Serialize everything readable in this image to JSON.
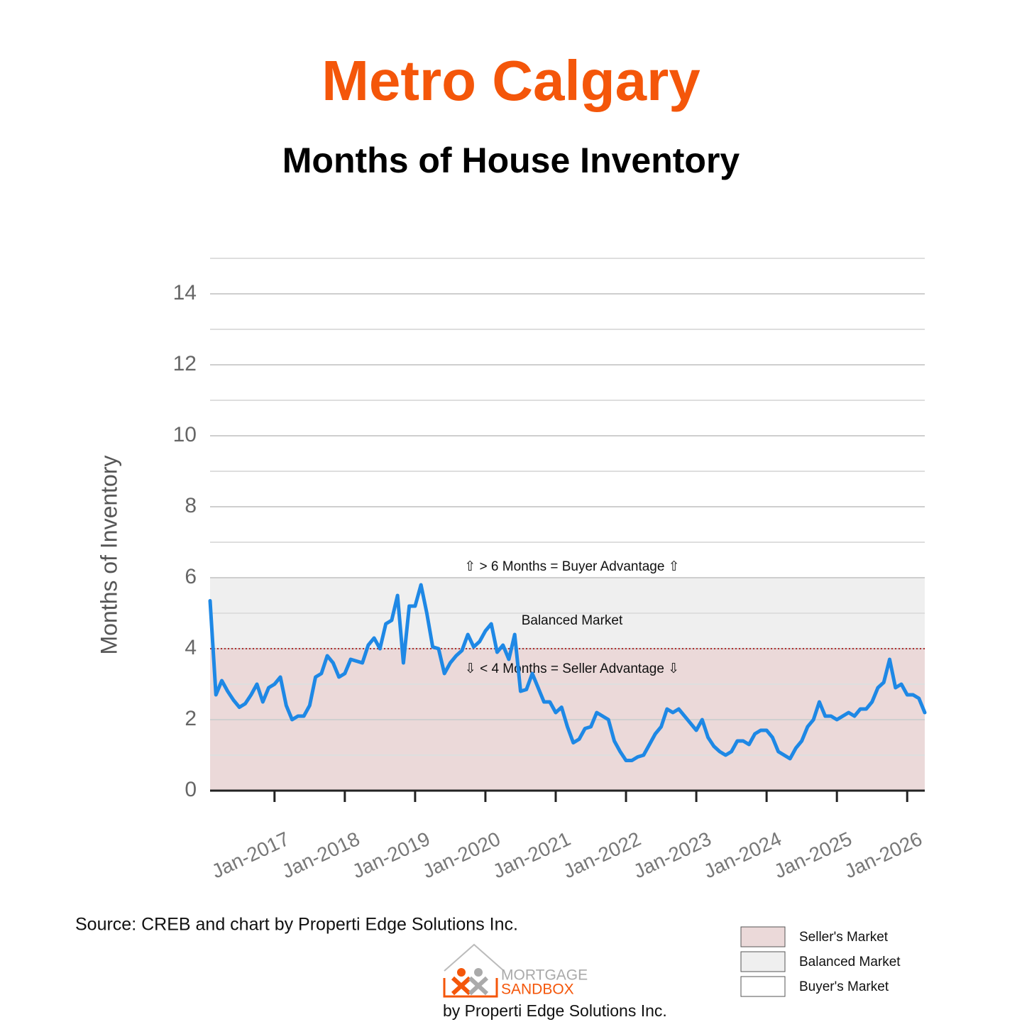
{
  "chart_data": {
    "type": "line",
    "title": "Metro Calgary",
    "subtitle": "Months of House Inventory",
    "y_label": "Months of Inventory",
    "x": [
      "2016-02",
      "2016-03",
      "2016-04",
      "2016-05",
      "2016-06",
      "2016-07",
      "2016-08",
      "2016-09",
      "2016-10",
      "2016-11",
      "2016-12",
      "2017-01",
      "2017-02",
      "2017-03",
      "2017-04",
      "2017-05",
      "2017-06",
      "2017-07",
      "2017-08",
      "2017-09",
      "2017-10",
      "2017-11",
      "2017-12",
      "2018-01",
      "2018-02",
      "2018-03",
      "2018-04",
      "2018-05",
      "2018-06",
      "2018-07",
      "2018-08",
      "2018-09",
      "2018-10",
      "2018-11",
      "2018-12",
      "2019-01",
      "2019-02",
      "2019-03",
      "2019-04",
      "2019-05",
      "2019-06",
      "2019-07",
      "2019-08",
      "2019-09",
      "2019-10",
      "2019-11",
      "2019-12",
      "2020-01",
      "2020-02",
      "2020-03",
      "2020-04",
      "2020-05",
      "2020-06",
      "2020-07",
      "2020-08",
      "2020-09",
      "2020-10",
      "2020-11",
      "2020-12",
      "2021-01",
      "2021-02",
      "2021-03",
      "2021-04",
      "2021-05",
      "2021-06",
      "2021-07",
      "2021-08",
      "2021-09",
      "2021-10",
      "2021-11",
      "2021-12",
      "2022-01",
      "2022-02",
      "2022-03",
      "2022-04",
      "2022-05",
      "2022-06",
      "2022-07",
      "2022-08",
      "2022-09",
      "2022-10",
      "2022-11",
      "2022-12",
      "2023-01",
      "2023-02",
      "2023-03",
      "2023-04",
      "2023-05",
      "2023-06",
      "2023-07",
      "2023-08",
      "2023-09",
      "2023-10",
      "2023-11",
      "2023-12",
      "2024-01",
      "2024-02",
      "2024-03",
      "2024-04",
      "2024-05",
      "2024-06",
      "2024-07",
      "2024-08",
      "2024-09",
      "2024-10",
      "2024-11",
      "2024-12",
      "2025-01",
      "2025-02",
      "2025-03",
      "2025-04",
      "2025-05",
      "2025-06",
      "2025-07",
      "2025-08",
      "2025-09",
      "2025-10",
      "2025-11",
      "2025-12",
      "2026-01",
      "2026-02",
      "2026-03",
      "2026-04"
    ],
    "series": [
      {
        "name": "Months of Inventory",
        "color": "#1e88e5",
        "values": [
          5.35,
          2.7,
          3.1,
          2.8,
          2.55,
          2.35,
          2.45,
          2.7,
          3.0,
          2.5,
          2.9,
          3.0,
          3.2,
          2.4,
          2.0,
          2.1,
          2.1,
          2.4,
          3.2,
          3.3,
          3.8,
          3.6,
          3.2,
          3.3,
          3.7,
          3.65,
          3.6,
          4.1,
          4.3,
          4.0,
          4.7,
          4.8,
          5.5,
          3.6,
          5.2,
          5.2,
          5.8,
          5.0,
          4.05,
          4.0,
          3.3,
          3.6,
          3.8,
          3.95,
          4.4,
          4.05,
          4.2,
          4.5,
          4.7,
          3.9,
          4.1,
          3.7,
          4.4,
          2.8,
          2.85,
          3.3,
          2.9,
          2.5,
          2.5,
          2.2,
          2.35,
          1.8,
          1.35,
          1.45,
          1.75,
          1.8,
          2.2,
          2.1,
          2.0,
          1.4,
          1.1,
          0.85,
          0.85,
          0.95,
          1.0,
          1.3,
          1.6,
          1.8,
          2.3,
          2.2,
          2.3,
          2.1,
          1.9,
          1.7,
          2.0,
          1.5,
          1.25,
          1.1,
          1.0,
          1.1,
          1.4,
          1.4,
          1.3,
          1.6,
          1.7,
          1.7,
          1.5,
          1.1,
          1.0,
          0.9,
          1.2,
          1.4,
          1.8,
          2.0,
          2.5,
          2.1,
          2.1,
          2.0,
          2.1,
          2.2,
          2.1,
          2.3,
          2.3,
          2.5,
          2.9,
          3.05,
          3.7,
          2.9,
          3.0,
          2.7,
          2.7,
          2.6,
          2.2
        ]
      }
    ],
    "xlim": [
      "2016-02",
      "2026-04"
    ],
    "xticks": [
      {
        "value": "2017-01",
        "label": "Jan-2017"
      },
      {
        "value": "2018-01",
        "label": "Jan-2018"
      },
      {
        "value": "2019-01",
        "label": "Jan-2019"
      },
      {
        "value": "2020-01",
        "label": "Jan-2020"
      },
      {
        "value": "2021-01",
        "label": "Jan-2021"
      },
      {
        "value": "2022-01",
        "label": "Jan-2022"
      },
      {
        "value": "2023-01",
        "label": "Jan-2023"
      },
      {
        "value": "2024-01",
        "label": "Jan-2024"
      },
      {
        "value": "2025-01",
        "label": "Jan-2025"
      },
      {
        "value": "2026-01",
        "label": "Jan-2026"
      }
    ],
    "ylim": [
      0,
      15
    ],
    "yticks": [
      0,
      2,
      4,
      6,
      8,
      10,
      12,
      14
    ],
    "minor_yticks": [
      1,
      3,
      5,
      7,
      9,
      11,
      13,
      15
    ],
    "grid": true,
    "bands": [
      {
        "name": "Seller's Market",
        "from": 0,
        "to": 4,
        "color": "#ebd9d9"
      },
      {
        "name": "Balanced Market",
        "from": 4,
        "to": 6,
        "color": "#efefef"
      },
      {
        "name": "Buyer's Market",
        "from": 6,
        "to": 15,
        "color": "#ffffff"
      }
    ],
    "threshold_color": "#b03030",
    "annotations": [
      "⇧ > 6 Months = Buyer Advantage ⇧",
      "Balanced Market",
      "⇩ < 4 Months = Seller Advantage ⇩"
    ],
    "legend": "bottom-right",
    "source": "Source: CREB and chart by Properti Edge Solutions Inc.",
    "logo": {
      "line1": "MORTGAGE",
      "line2": "SANDBOX",
      "byline": "by Properti Edge Solutions Inc."
    }
  }
}
